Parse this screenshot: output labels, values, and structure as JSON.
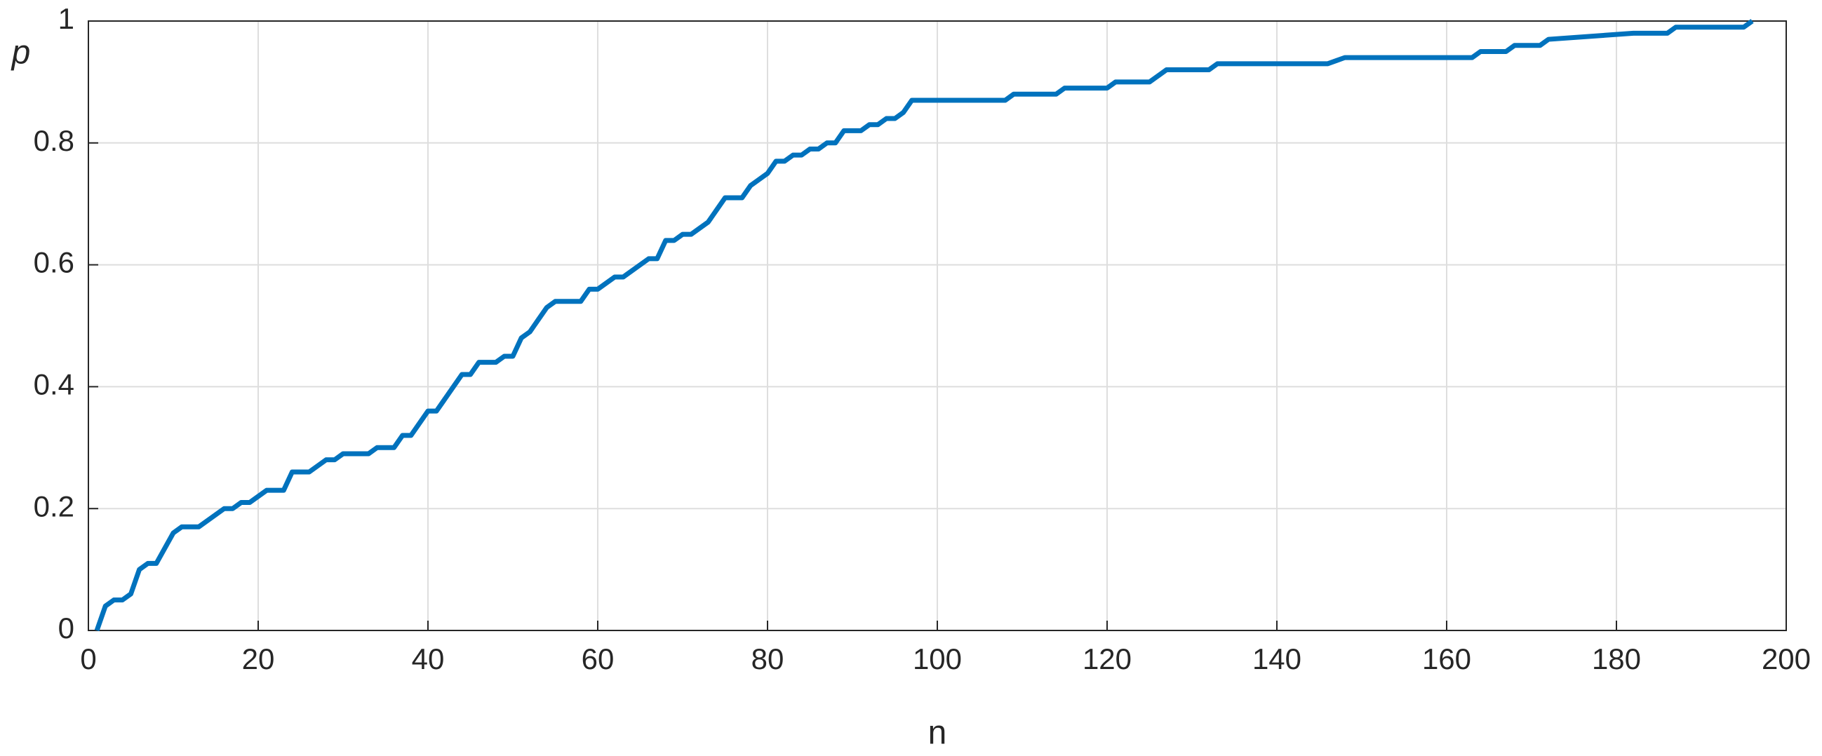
{
  "chart_data": {
    "type": "line",
    "x_label": "n",
    "y_label": "p",
    "x": [
      1,
      2,
      3,
      4,
      5,
      6,
      7,
      8,
      10,
      11,
      13,
      16,
      17,
      18,
      19,
      21,
      23,
      24,
      26,
      28,
      29,
      30,
      33,
      34,
      36,
      37,
      38,
      40,
      41,
      42,
      44,
      45,
      46,
      48,
      49,
      50,
      51,
      52,
      54,
      55,
      58,
      59,
      60,
      62,
      63,
      66,
      67,
      68,
      69,
      70,
      71,
      73,
      75,
      77,
      78,
      80,
      81,
      82,
      83,
      84,
      85,
      86,
      87,
      88,
      89,
      91,
      92,
      93,
      94,
      95,
      96,
      97,
      108,
      109,
      114,
      115,
      120,
      121,
      125,
      127,
      132,
      133,
      146,
      148,
      163,
      164,
      167,
      168,
      171,
      172,
      182,
      186,
      187,
      195,
      196
    ],
    "series": [
      {
        "name": "p",
        "color": "#0072bd",
        "values": [
          0,
          0.04,
          0.05,
          0.05,
          0.06,
          0.1,
          0.11,
          0.11,
          0.16,
          0.17,
          0.17,
          0.2,
          0.2,
          0.21,
          0.21,
          0.23,
          0.23,
          0.26,
          0.26,
          0.28,
          0.28,
          0.29,
          0.29,
          0.3,
          0.3,
          0.32,
          0.32,
          0.36,
          0.36,
          0.38,
          0.42,
          0.42,
          0.44,
          0.44,
          0.45,
          0.45,
          0.48,
          0.49,
          0.53,
          0.54,
          0.54,
          0.56,
          0.56,
          0.58,
          0.58,
          0.61,
          0.61,
          0.64,
          0.64,
          0.65,
          0.65,
          0.67,
          0.71,
          0.71,
          0.73,
          0.75,
          0.77,
          0.77,
          0.78,
          0.78,
          0.79,
          0.79,
          0.8,
          0.8,
          0.82,
          0.82,
          0.83,
          0.83,
          0.84,
          0.84,
          0.85,
          0.87,
          0.87,
          0.88,
          0.88,
          0.89,
          0.89,
          0.9,
          0.9,
          0.92,
          0.92,
          0.93,
          0.93,
          0.94,
          0.94,
          0.95,
          0.95,
          0.96,
          0.96,
          0.97,
          0.98,
          0.98,
          0.99,
          0.99,
          1
        ]
      }
    ],
    "xlim": [
      0,
      200
    ],
    "xticks": [
      0,
      20,
      40,
      60,
      80,
      100,
      120,
      140,
      160,
      180,
      200
    ],
    "ylim": [
      0,
      1
    ],
    "yticks": [
      0,
      0.2,
      0.4,
      0.6,
      0.8,
      1
    ],
    "grid": true
  }
}
